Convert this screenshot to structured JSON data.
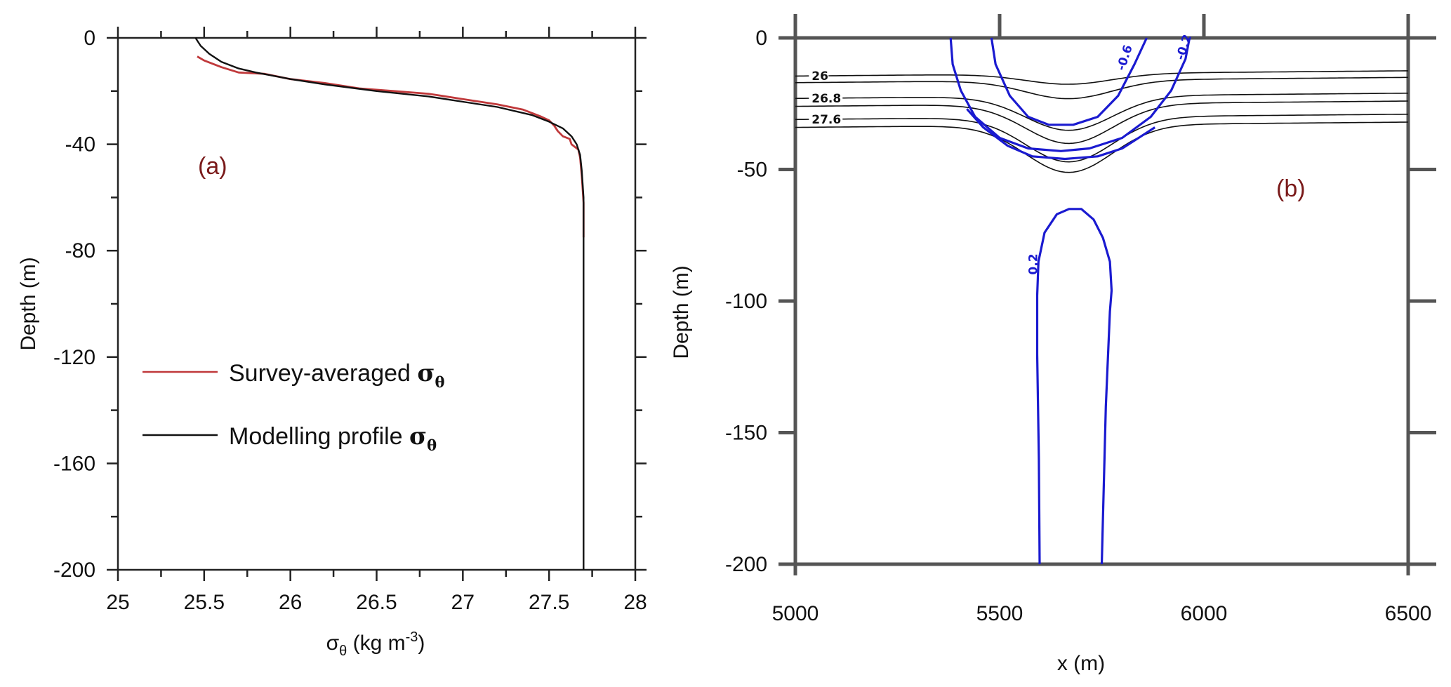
{
  "chart_data": [
    {
      "type": "line",
      "panel_label": "(a)",
      "xlabel": {
        "symbol": "σ",
        "sub": "θ",
        "rest": " (kg m",
        "sup": "-3",
        "close": ")"
      },
      "ylabel": "Depth (m)",
      "xlim": [
        25,
        28
      ],
      "ylim": [
        -200,
        0
      ],
      "x_ticks": [
        "25",
        "25.5",
        "26",
        "26.5",
        "27",
        "27.5",
        "28"
      ],
      "x_tick_values": [
        25,
        25.5,
        26,
        26.5,
        27,
        27.5,
        28
      ],
      "y_ticks": [
        "0",
        "-40",
        "-80",
        "-120",
        "-160",
        "-200"
      ],
      "y_tick_values": [
        0,
        -40,
        -80,
        -120,
        -160,
        -200
      ],
      "legend_placement": "lower-left",
      "series": [
        {
          "name": "Survey-averaged σθ",
          "legend_text": "Survey-averaged ",
          "legend_symbol": "σ",
          "legend_sub": "θ",
          "color": "#c0393b",
          "points": [
            [
              25.46,
              -7
            ],
            [
              25.5,
              -8.5
            ],
            [
              25.6,
              -11
            ],
            [
              25.7,
              -13
            ],
            [
              25.85,
              -13.5
            ],
            [
              26.0,
              -15.5
            ],
            [
              26.2,
              -17
            ],
            [
              26.4,
              -19
            ],
            [
              26.6,
              -20
            ],
            [
              26.8,
              -21
            ],
            [
              27.0,
              -23
            ],
            [
              27.2,
              -25
            ],
            [
              27.35,
              -27
            ],
            [
              27.45,
              -29.5
            ],
            [
              27.5,
              -31
            ],
            [
              27.53,
              -33
            ],
            [
              27.55,
              -35
            ],
            [
              27.58,
              -37
            ],
            [
              27.62,
              -38
            ],
            [
              27.63,
              -40
            ],
            [
              27.67,
              -42
            ],
            [
              27.68,
              -45
            ],
            [
              27.69,
              -52
            ],
            [
              27.7,
              -62
            ],
            [
              27.7,
              -75
            ]
          ]
        },
        {
          "name": "Modelling profile σθ",
          "legend_text": "Modelling profile ",
          "legend_symbol": "σ",
          "legend_sub": "θ",
          "color": "#111111",
          "points": [
            [
              25.45,
              0
            ],
            [
              25.48,
              -3
            ],
            [
              25.53,
              -6
            ],
            [
              25.6,
              -9
            ],
            [
              25.7,
              -11.5
            ],
            [
              25.8,
              -13
            ],
            [
              26.0,
              -15.5
            ],
            [
              26.2,
              -17.5
            ],
            [
              26.5,
              -20
            ],
            [
              26.8,
              -22
            ],
            [
              27.0,
              -24
            ],
            [
              27.2,
              -26
            ],
            [
              27.4,
              -29
            ],
            [
              27.5,
              -31.5
            ],
            [
              27.58,
              -34
            ],
            [
              27.63,
              -37
            ],
            [
              27.66,
              -40
            ],
            [
              27.68,
              -44
            ],
            [
              27.69,
              -50
            ],
            [
              27.7,
              -60
            ],
            [
              27.7,
              -80
            ],
            [
              27.7,
              -120
            ],
            [
              27.7,
              -160
            ],
            [
              27.7,
              -200
            ]
          ]
        }
      ]
    },
    {
      "type": "contour",
      "panel_label": "(b)",
      "xlabel": "x (m)",
      "ylabel": "Depth  (m)",
      "xlim": [
        5000,
        6500
      ],
      "ylim": [
        -200,
        0
      ],
      "x_ticks": [
        "5000",
        "5500",
        "6000",
        "6500"
      ],
      "x_tick_values": [
        5000,
        5500,
        6000,
        6500
      ],
      "y_ticks": [
        "0",
        "-50",
        "-100",
        "-150",
        "-200"
      ],
      "y_tick_values": [
        0,
        -50,
        -100,
        -150,
        -200
      ],
      "density_contours": {
        "color": "#111111",
        "levels": [
          {
            "label": "26",
            "edge_depth": -14.5,
            "dip": 4
          },
          {
            "label": "",
            "edge_depth": -17,
            "dip": 7
          },
          {
            "label": "26.8",
            "edge_depth": -23,
            "dip": 13
          },
          {
            "label": "",
            "edge_depth": -26,
            "dip": 15
          },
          {
            "label": "27.6",
            "edge_depth": -31,
            "dip": 17
          },
          {
            "label": "",
            "edge_depth": -34,
            "dip": 18
          }
        ]
      },
      "velocity_contours": {
        "color": "#1a1ad0",
        "upper": [
          {
            "label": "-0.6",
            "points": [
              [
                5480,
                0
              ],
              [
                5490,
                -10
              ],
              [
                5525,
                -22
              ],
              [
                5570,
                -30
              ],
              [
                5620,
                -33
              ],
              [
                5680,
                -33
              ],
              [
                5740,
                -30
              ],
              [
                5790,
                -22
              ],
              [
                5830,
                -10
              ],
              [
                5860,
                0
              ]
            ]
          },
          {
            "label": "-0.2",
            "points": [
              [
                5380,
                0
              ],
              [
                5385,
                -10
              ],
              [
                5405,
                -20
              ],
              [
                5440,
                -30
              ],
              [
                5500,
                -38
              ],
              [
                5570,
                -42
              ],
              [
                5650,
                -43
              ],
              [
                5720,
                -42
              ],
              [
                5800,
                -38
              ],
              [
                5870,
                -30
              ],
              [
                5920,
                -20
              ],
              [
                5955,
                -8
              ],
              [
                5965,
                0
              ]
            ]
          },
          {
            "label": "",
            "points": [
              [
                5420,
                -27
              ],
              [
                5460,
                -34
              ],
              [
                5520,
                -41
              ],
              [
                5580,
                -45
              ],
              [
                5660,
                -46
              ],
              [
                5740,
                -45
              ],
              [
                5800,
                -42
              ],
              [
                5850,
                -37
              ],
              [
                5880,
                -34
              ]
            ]
          }
        ],
        "lower": {
          "label": "0.2",
          "points": [
            [
              5598,
              -200
            ],
            [
              5596,
              -160
            ],
            [
              5592,
              -120
            ],
            [
              5592,
              -98
            ],
            [
              5595,
              -85
            ],
            [
              5610,
              -74
            ],
            [
              5640,
              -67
            ],
            [
              5670,
              -65
            ],
            [
              5700,
              -65
            ],
            [
              5730,
              -69
            ],
            [
              5753,
              -76
            ],
            [
              5770,
              -85
            ],
            [
              5774,
              -96
            ],
            [
              5770,
              -104
            ],
            [
              5760,
              -140
            ],
            [
              5750,
              -200
            ]
          ]
        }
      }
    }
  ]
}
